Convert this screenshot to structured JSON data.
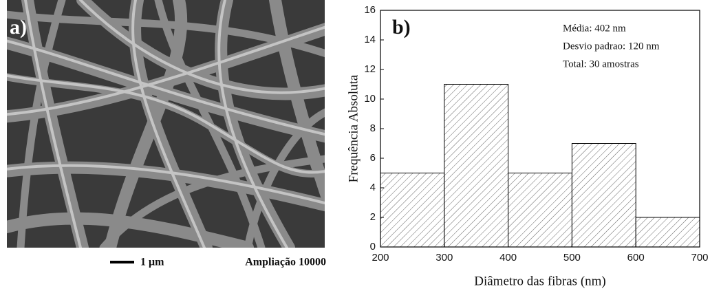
{
  "panel_a": {
    "label": "a)",
    "scale_bar": "1 μm",
    "magnification": "Ampliação 10000"
  },
  "chart_data": {
    "type": "histogram",
    "panel_label": "b)",
    "x_label": "Diâmetro das fibras (nm)",
    "y_label": "Frequência Absoluta",
    "bins": [
      200,
      300,
      400,
      500,
      600,
      700
    ],
    "values": [
      5,
      11,
      5,
      7,
      2
    ],
    "xlim": [
      200,
      700
    ],
    "xticks": [
      200,
      300,
      400,
      500,
      600,
      700
    ],
    "ylim": [
      0,
      16
    ],
    "yticks": [
      0,
      2,
      4,
      6,
      8,
      10,
      12,
      14,
      16
    ],
    "annotations": [
      "Média: 402 nm",
      "Desvio padrao: 120 nm",
      "Total: 30 amostras"
    ]
  }
}
